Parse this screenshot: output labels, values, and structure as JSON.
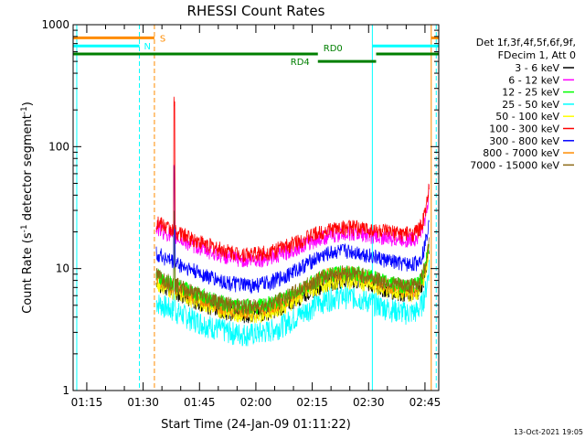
{
  "chart_data": {
    "type": "line",
    "title": "RHESSI Count Rates",
    "xlabel": "Start Time (24-Jan-09 01:11:22)",
    "ylabel_main": "Count Rate (s",
    "ylabel_sup1": "-1",
    "ylabel_mid": " detector segment",
    "ylabel_sup2": "-1",
    "ylabel_end": ")",
    "y_scale": "log",
    "ylim": [
      1,
      1000
    ],
    "xlim": [
      "01:11:22",
      "02:48:40"
    ],
    "x_ticks": [
      "01:15",
      "01:30",
      "01:45",
      "02:00",
      "02:15",
      "02:30",
      "02:45"
    ],
    "y_ticks": [
      "1",
      "10",
      "100",
      "1000"
    ],
    "legend_header": [
      "Det 1f,3f,4f,5f,6f,9f,",
      "FDecim 1, Att 0"
    ],
    "legend_placement": "right",
    "series": [
      {
        "name": "3 - 6 keV",
        "color": "#000000",
        "base": 6.0,
        "hump": 1.4
      },
      {
        "name": "6 - 12 keV",
        "color": "#ff00ff",
        "base": 17.0,
        "hump": 1.2
      },
      {
        "name": "12 - 25 keV",
        "color": "#00ff00",
        "base": 7.0,
        "hump": 1.4
      },
      {
        "name": "25 - 50 keV",
        "color": "#00ffff",
        "base": 4.2,
        "hump": 1.5
      },
      {
        "name": "50 - 100 keV",
        "color": "#ffff00",
        "base": 6.0,
        "hump": 1.4
      },
      {
        "name": "100 - 300 keV",
        "color": "#ff0000",
        "base": 19.0,
        "hump": 1.2
      },
      {
        "name": "300 - 800 keV",
        "color": "#0000ff",
        "base": 10.5,
        "hump": 1.4
      },
      {
        "name": "800 - 7000 keV",
        "color": "#ff8c00",
        "base": 6.5,
        "hump": 1.5
      },
      {
        "name": "7000 - 15000 keV",
        "color": "#8b6914",
        "base": 7.0,
        "hump": 1.4
      }
    ],
    "data_start": "01:33:30",
    "data_end": "02:46:10",
    "spike_time": "01:38:20",
    "spike_peak": 220,
    "hump_center": "02:22:00",
    "annotations": {
      "S": {
        "label": "S",
        "color": "#ff8c00",
        "start": "01:11:22",
        "end": "01:33:00",
        "level": 780
      },
      "N": {
        "label": "N",
        "color": "#00ffff",
        "start": "01:11:22",
        "end": "01:29:00",
        "level": 670
      },
      "RD0": {
        "label": "RD0",
        "color": "#007f00",
        "start": "01:11:22",
        "end": "02:16:30",
        "level": 575
      },
      "RD4": {
        "label": "RD4",
        "color": "#007f00",
        "start": "02:16:30",
        "end": "02:32:00",
        "level": 500
      },
      "RD0_tail": {
        "color": "#007f00",
        "start": "02:32:00",
        "end": "02:48:40",
        "level": 575
      },
      "N_tail": {
        "color": "#00ffff",
        "start": "02:31:00",
        "end": "02:48:40",
        "level": 670
      },
      "S_tail": {
        "color": "#ff8c00",
        "start": "02:46:40",
        "end": "02:48:40",
        "level": 780
      }
    },
    "markers": [
      {
        "time": "01:12:20",
        "color": "#00ffff",
        "style": "solid"
      },
      {
        "time": "01:29:00",
        "color": "#00ffff",
        "style": "dashed"
      },
      {
        "time": "01:33:00",
        "color": "#ff8c00",
        "style": "dashed"
      },
      {
        "time": "02:31:00",
        "color": "#00ffff",
        "style": "solid"
      },
      {
        "time": "02:46:40",
        "color": "#ff8c00",
        "style": "solid"
      },
      {
        "time": "02:48:00",
        "color": "#00ffff",
        "style": "dashed"
      }
    ]
  },
  "footer": {
    "timestamp": "13-Oct-2021 19:05"
  }
}
